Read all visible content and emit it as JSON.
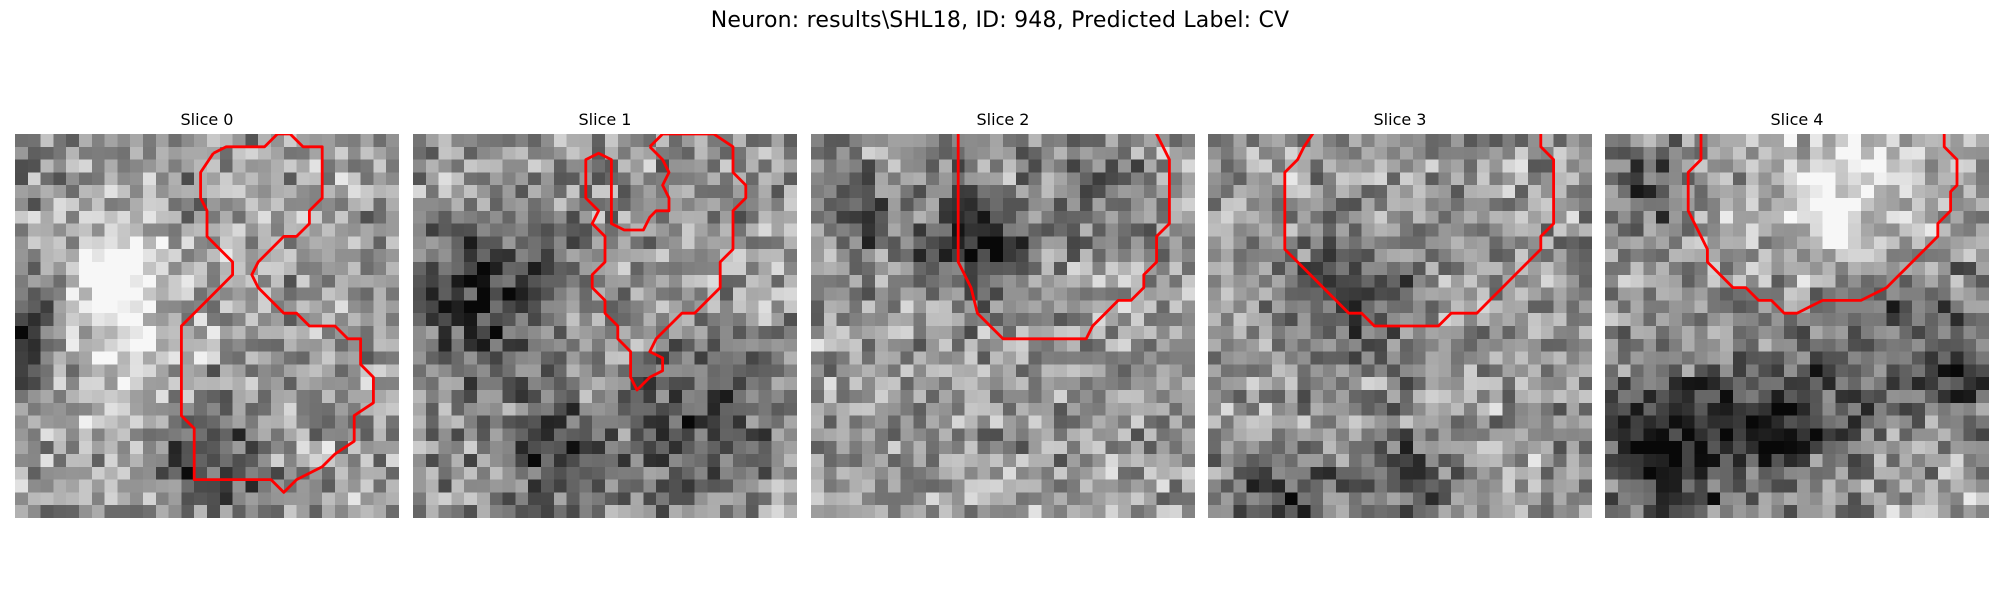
{
  "figure": {
    "title": "Neuron: results\\SHL18, ID: 948, Predicted Label: CV"
  },
  "grid_size": 30,
  "contour_color": "#ff0000",
  "panels": [
    {
      "title": "Slice 0",
      "seed": 11,
      "dark_spots": [
        [
          1,
          15,
          5.5,
          -0.55
        ],
        [
          15,
          25,
          4,
          -0.35
        ],
        [
          5,
          16,
          6,
          0.45
        ],
        [
          7,
          10,
          4,
          0.4
        ]
      ],
      "contour": [
        [
          15.5,
          1.5
        ],
        [
          16.5,
          1
        ],
        [
          19.5,
          1
        ],
        [
          20.5,
          0
        ],
        [
          21.5,
          0
        ],
        [
          22.5,
          1
        ],
        [
          24,
          1
        ],
        [
          24,
          5
        ],
        [
          23,
          6
        ],
        [
          23,
          7
        ],
        [
          22,
          8
        ],
        [
          21,
          8
        ],
        [
          19,
          10
        ],
        [
          18.5,
          11
        ],
        [
          19,
          12
        ],
        [
          21,
          14
        ],
        [
          22,
          14
        ],
        [
          23,
          15
        ],
        [
          25,
          15
        ],
        [
          26,
          16
        ],
        [
          27,
          16
        ],
        [
          27,
          18
        ],
        [
          28,
          19
        ],
        [
          28,
          21
        ],
        [
          26.5,
          22
        ],
        [
          26.5,
          24
        ],
        [
          25,
          25
        ],
        [
          24,
          26
        ],
        [
          22,
          27
        ],
        [
          21,
          28
        ],
        [
          20,
          27
        ],
        [
          14,
          27
        ],
        [
          14,
          23
        ],
        [
          13,
          22
        ],
        [
          13,
          15
        ],
        [
          14,
          14
        ],
        [
          16,
          12
        ],
        [
          17,
          11
        ],
        [
          17,
          10
        ],
        [
          16,
          9
        ],
        [
          15,
          8
        ],
        [
          15,
          6
        ],
        [
          14.5,
          5
        ],
        [
          14.5,
          3
        ],
        [
          15.5,
          1.5
        ]
      ]
    },
    {
      "title": "Slice 1",
      "seed": 23,
      "dark_spots": [
        [
          5,
          12,
          6,
          -0.45
        ],
        [
          22,
          22,
          6,
          -0.3
        ],
        [
          10,
          25,
          5,
          -0.3
        ]
      ],
      "contour": [
        [
          18.5,
          1
        ],
        [
          19.5,
          0
        ],
        [
          23.5,
          0
        ],
        [
          25,
          1
        ],
        [
          25,
          3
        ],
        [
          26,
          4
        ],
        [
          26,
          5
        ],
        [
          25,
          6
        ],
        [
          25,
          9
        ],
        [
          24,
          10
        ],
        [
          24,
          12
        ],
        [
          23,
          13
        ],
        [
          22,
          14
        ],
        [
          21,
          14
        ],
        [
          20,
          15
        ],
        [
          19,
          16
        ],
        [
          18.5,
          17
        ],
        [
          19.5,
          17.5
        ],
        [
          19.5,
          18.5
        ],
        [
          18.5,
          19
        ],
        [
          18,
          19.5
        ],
        [
          17.5,
          20
        ],
        [
          17,
          19
        ],
        [
          17,
          17
        ],
        [
          16,
          16
        ],
        [
          16,
          15
        ],
        [
          15,
          14
        ],
        [
          15,
          13
        ],
        [
          14,
          12
        ],
        [
          14,
          11
        ],
        [
          15,
          10
        ],
        [
          15,
          8
        ],
        [
          14,
          7
        ],
        [
          14.5,
          6
        ],
        [
          13.5,
          5
        ],
        [
          13.5,
          4
        ],
        [
          13.5,
          2
        ],
        [
          14.5,
          1.5
        ],
        [
          15.5,
          2
        ],
        [
          15.5,
          7
        ],
        [
          16.5,
          7.5
        ],
        [
          18,
          7.5
        ],
        [
          18.5,
          6.5
        ],
        [
          19,
          6
        ],
        [
          20,
          6
        ],
        [
          20,
          5
        ],
        [
          19.5,
          4
        ],
        [
          20,
          3
        ],
        [
          19.5,
          2
        ],
        [
          18.5,
          1
        ]
      ]
    },
    {
      "title": "Slice 2",
      "seed": 37,
      "dark_spots": [
        [
          12,
          8,
          4,
          -0.5
        ],
        [
          3,
          6,
          3,
          -0.35
        ],
        [
          22,
          3,
          4,
          -0.2
        ]
      ],
      "contour": [
        [
          11.5,
          -0.5
        ],
        [
          11.5,
          10
        ],
        [
          12,
          11
        ],
        [
          12.5,
          12
        ],
        [
          13,
          14
        ],
        [
          14,
          15
        ],
        [
          15,
          16
        ],
        [
          21.5,
          16
        ],
        [
          22,
          15
        ],
        [
          23,
          14
        ],
        [
          24,
          13
        ],
        [
          25,
          13
        ],
        [
          26,
          12
        ],
        [
          26,
          11
        ],
        [
          27,
          10
        ],
        [
          27,
          8
        ],
        [
          28,
          7
        ],
        [
          28,
          2
        ],
        [
          27.5,
          1
        ],
        [
          27,
          0
        ],
        [
          27,
          -0.5
        ]
      ]
    },
    {
      "title": "Slice 3",
      "seed": 53,
      "dark_spots": [
        [
          11,
          12,
          5,
          -0.3
        ],
        [
          5,
          28,
          4,
          -0.35
        ],
        [
          15,
          26,
          4,
          -0.3
        ]
      ],
      "contour": [
        [
          8.5,
          -0.5
        ],
        [
          7.5,
          1
        ],
        [
          7,
          2
        ],
        [
          6,
          3
        ],
        [
          6,
          9
        ],
        [
          7,
          10
        ],
        [
          8,
          11
        ],
        [
          9,
          12
        ],
        [
          10,
          13
        ],
        [
          11,
          14
        ],
        [
          12,
          14
        ],
        [
          13,
          15
        ],
        [
          18,
          15
        ],
        [
          19,
          14
        ],
        [
          21,
          14
        ],
        [
          22,
          13
        ],
        [
          23,
          12
        ],
        [
          24,
          11
        ],
        [
          25,
          10
        ],
        [
          26,
          9
        ],
        [
          26,
          8
        ],
        [
          27,
          7
        ],
        [
          27,
          2
        ],
        [
          26,
          1
        ],
        [
          26,
          -0.5
        ]
      ]
    },
    {
      "title": "Slice 4",
      "seed": 71,
      "dark_spots": [
        [
          5,
          24,
          6,
          -0.5
        ],
        [
          14,
          22,
          5,
          -0.35
        ],
        [
          22,
          14,
          6,
          -0.25
        ],
        [
          27,
          18,
          4,
          -0.25
        ],
        [
          3,
          4,
          4,
          -0.25
        ],
        [
          18,
          4,
          6,
          0.35
        ]
      ],
      "contour": [
        [
          7.5,
          -0.5
        ],
        [
          7.5,
          2
        ],
        [
          6.5,
          3
        ],
        [
          6.5,
          6
        ],
        [
          7,
          7
        ],
        [
          7.5,
          8
        ],
        [
          8,
          9
        ],
        [
          8,
          10
        ],
        [
          9,
          11
        ],
        [
          10,
          12
        ],
        [
          11,
          12
        ],
        [
          12,
          13
        ],
        [
          13,
          13
        ],
        [
          14,
          14
        ],
        [
          15,
          14
        ],
        [
          16,
          13.5
        ],
        [
          17,
          13
        ],
        [
          20,
          13
        ],
        [
          21,
          12.5
        ],
        [
          22,
          12
        ],
        [
          23,
          11
        ],
        [
          24,
          10
        ],
        [
          25,
          9
        ],
        [
          26,
          8
        ],
        [
          26,
          7
        ],
        [
          27,
          6
        ],
        [
          27,
          4.5
        ],
        [
          27.5,
          4
        ],
        [
          27.5,
          2
        ],
        [
          26.5,
          1
        ],
        [
          26.5,
          -0.5
        ]
      ]
    }
  ]
}
